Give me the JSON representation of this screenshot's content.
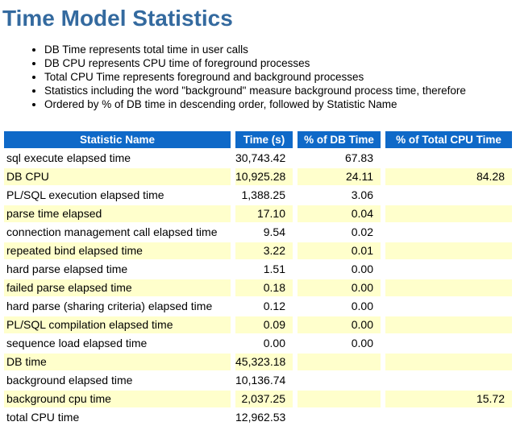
{
  "page": {
    "title": "Time Model Statistics"
  },
  "notes": [
    "DB Time represents total time in user calls",
    "DB CPU represents CPU time of foreground processes",
    "Total CPU Time represents foreground and background processes",
    "Statistics including the word \"background\" measure background process time, therefore",
    "Ordered by % of DB time in descending order, followed by Statistic Name"
  ],
  "table": {
    "columns": [
      "Statistic Name",
      "Time (s)",
      "% of DB Time",
      "% of Total CPU Time"
    ],
    "rows": [
      [
        "sql execute elapsed time",
        "30,743.42",
        "67.83",
        ""
      ],
      [
        "DB CPU",
        "10,925.28",
        "24.11",
        "84.28"
      ],
      [
        "PL/SQL execution elapsed time",
        "1,388.25",
        "3.06",
        ""
      ],
      [
        "parse time elapsed",
        "17.10",
        "0.04",
        ""
      ],
      [
        "connection management call elapsed time",
        "9.54",
        "0.02",
        ""
      ],
      [
        "repeated bind elapsed time",
        "3.22",
        "0.01",
        ""
      ],
      [
        "hard parse elapsed time",
        "1.51",
        "0.00",
        ""
      ],
      [
        "failed parse elapsed time",
        "0.18",
        "0.00",
        ""
      ],
      [
        "hard parse (sharing criteria) elapsed time",
        "0.12",
        "0.00",
        ""
      ],
      [
        "PL/SQL compilation elapsed time",
        "0.09",
        "0.00",
        ""
      ],
      [
        "sequence load elapsed time",
        "0.00",
        "0.00",
        ""
      ],
      [
        "DB time",
        "45,323.18",
        "",
        ""
      ],
      [
        "background elapsed time",
        "10,136.74",
        "",
        ""
      ],
      [
        "background cpu time",
        "2,037.25",
        "",
        "15.72"
      ],
      [
        "total CPU time",
        "12,962.53",
        "",
        ""
      ]
    ]
  },
  "colors": {
    "title_text": "#346A9F",
    "header_bg": "#0F69C8",
    "header_text": "#FFFFFF",
    "row_stripe_bg": "#FFFFCC",
    "body_text": "#000000"
  }
}
